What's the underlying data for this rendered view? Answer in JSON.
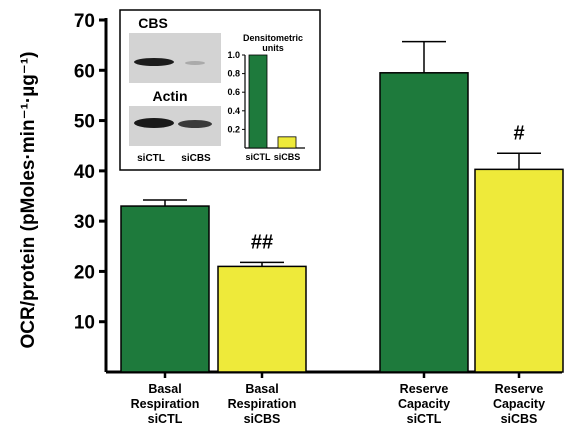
{
  "chart_data": [
    {
      "type": "bar",
      "ylabel": "OCR/protein (pMoles·min⁻¹·µg⁻¹)",
      "ylim": [
        0,
        70
      ],
      "yticks": [
        10,
        20,
        30,
        40,
        50,
        60,
        70
      ],
      "categories": [
        [
          "Basal",
          "Respiration",
          "siCTL"
        ],
        [
          "Basal",
          "Respiration",
          "siCBS"
        ],
        [
          "Reserve",
          "Capacity",
          "siCTL"
        ],
        [
          "Reserve",
          "Capacity",
          "siCBS"
        ]
      ],
      "values": [
        33,
        21,
        59.5,
        40.3
      ],
      "errors": [
        1.2,
        0.8,
        6.2,
        3.2
      ],
      "significance": [
        "",
        "##",
        "",
        "#"
      ],
      "colors": [
        "#1e7a3c",
        "#eeea3a",
        "#1e7a3c",
        "#eeea3a"
      ],
      "grid": false
    },
    {
      "type": "bar",
      "title": "Densitometric units",
      "categories": [
        "siCTL",
        "siCBS"
      ],
      "values": [
        1.0,
        0.12
      ],
      "ylim": [
        0,
        1.0
      ],
      "yticks": [
        0.2,
        0.4,
        0.6,
        0.8,
        1.0
      ],
      "colors": [
        "#1e7a3c",
        "#eeea3a"
      ]
    }
  ],
  "blot": {
    "top_label": "CBS",
    "bottom_label": "Actin",
    "lane_labels": [
      "siCTL",
      "siCBS"
    ]
  }
}
